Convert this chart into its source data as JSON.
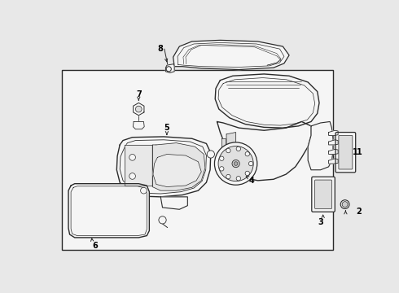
{
  "background_color": "#e8e8e8",
  "box_facecolor": "#e8e8e8",
  "line_color": "#2a2a2a",
  "label_color": "#000000",
  "fig_width": 4.9,
  "fig_height": 3.6,
  "dpi": 100
}
